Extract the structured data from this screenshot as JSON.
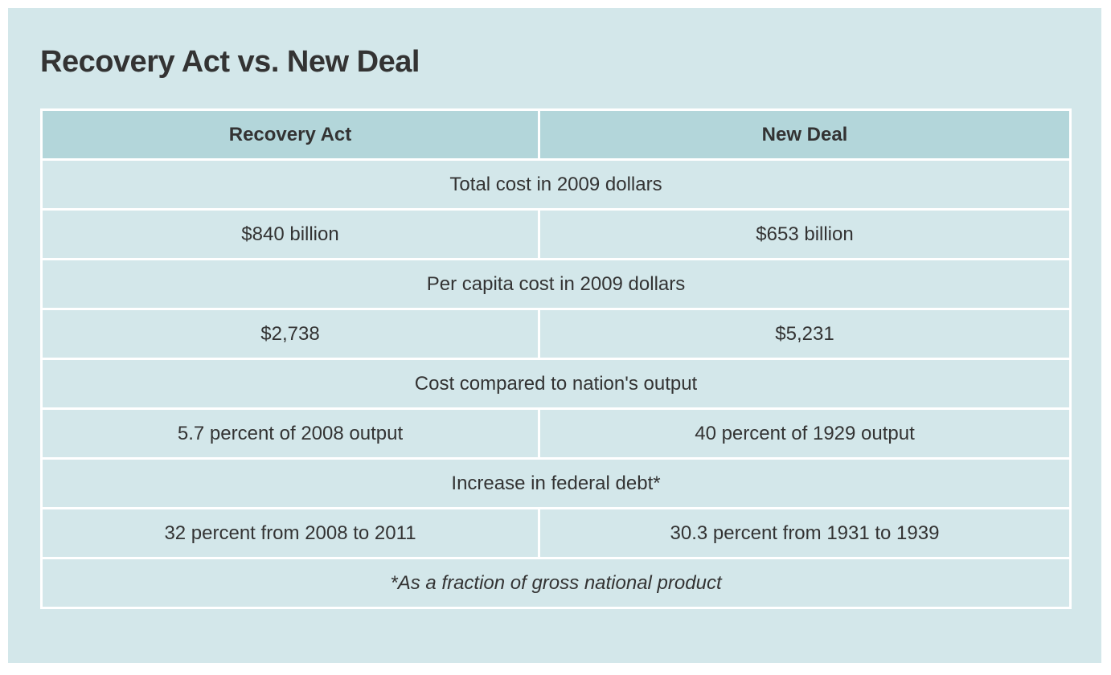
{
  "title": "Recovery Act vs. New Deal",
  "columns": [
    "Recovery Act",
    "New Deal"
  ],
  "sections": [
    {
      "label": "Total cost in 2009 dollars",
      "recovery_act": "$840 billion",
      "new_deal": "$653 billion"
    },
    {
      "label": "Per capita cost in 2009 dollars",
      "recovery_act": "$2,738",
      "new_deal": "$5,231"
    },
    {
      "label": "Cost compared to nation's output",
      "recovery_act": "5.7 percent of 2008 output",
      "new_deal": "40 percent of 1929 output"
    },
    {
      "label": "Increase in federal debt*",
      "recovery_act": "32 percent from 2008 to 2011",
      "new_deal": "30.3 percent from 1931 to 1939"
    }
  ],
  "footnote": "*As a fraction of gross national product",
  "colors": {
    "panel_background": "#d3e7ea",
    "header_background": "#b3d6da",
    "grid_lines": "#ffffff",
    "text": "#333333"
  }
}
